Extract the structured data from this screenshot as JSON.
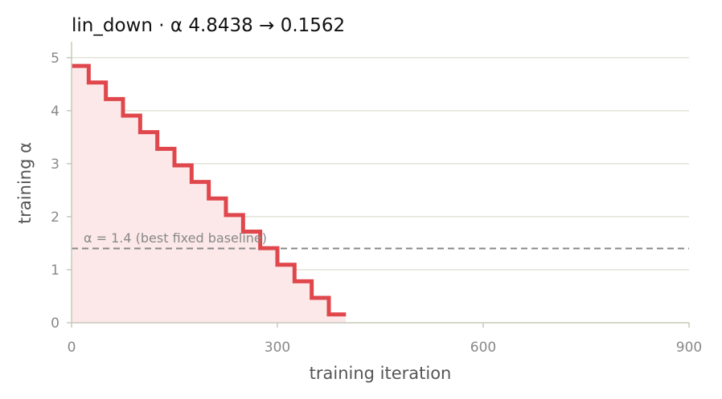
{
  "chart_data": {
    "type": "line",
    "title": "lin_down   ·   α 4.8438 → 0.1562",
    "xlabel": "training iteration",
    "ylabel": "training α",
    "xlim": [
      0,
      900
    ],
    "ylim": [
      0,
      5.3
    ],
    "xticks": [
      0,
      300,
      600,
      900
    ],
    "yticks": [
      0,
      1,
      2,
      3,
      4,
      5
    ],
    "grid": "horizontal",
    "series": [
      {
        "step": "post",
        "color": "#e0474c",
        "fill": "#fce8e8",
        "x": [
          0,
          25,
          50,
          75,
          100,
          125,
          150,
          175,
          200,
          225,
          250,
          275,
          300,
          325,
          350,
          375,
          400
        ],
        "y": [
          4.8438,
          4.5312,
          4.2188,
          3.9062,
          3.5938,
          3.2812,
          2.9688,
          2.6562,
          2.3438,
          2.0312,
          1.7188,
          1.4062,
          1.0938,
          0.7812,
          0.4688,
          0.1562,
          0.1562
        ]
      }
    ],
    "reference_line": {
      "y": 1.4,
      "label": "α = 1.4 (best fixed baseline)",
      "style": "dashed",
      "color": "#888888"
    }
  }
}
